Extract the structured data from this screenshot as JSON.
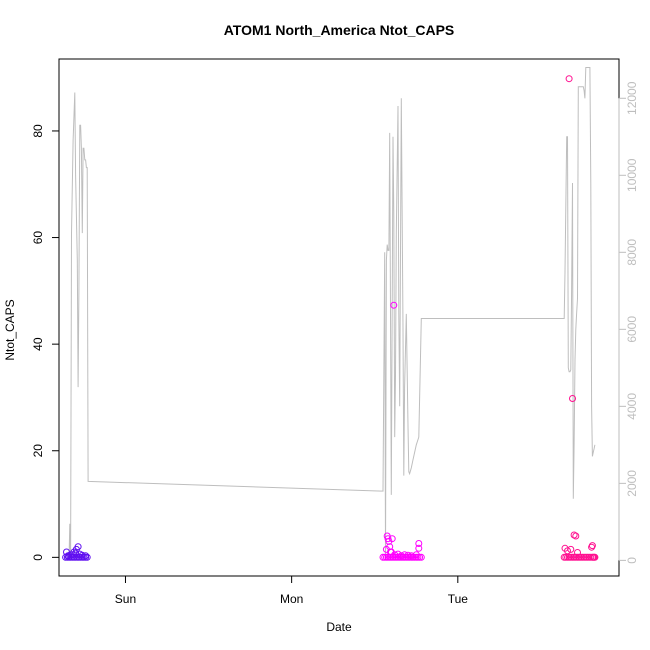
{
  "chart_data": {
    "type": "scatter",
    "title": "ATOM1 North_America Ntot_CAPS",
    "xlabel": "Date",
    "ylabel": "Ntot_CAPS",
    "x_unit": "day",
    "xlim": [
      -0.4,
      2.97
    ],
    "x_ticks": [
      {
        "value": 0,
        "label": "Sun"
      },
      {
        "value": 1,
        "label": "Mon"
      },
      {
        "value": 2,
        "label": "Tue"
      }
    ],
    "ylim": [
      -3.5,
      93.5
    ],
    "y_ticks": [
      0,
      20,
      40,
      60,
      80
    ],
    "secondary_ylim": [
      -406,
      13020
    ],
    "secondary_y_ticks": [
      0,
      2000,
      4000,
      6000,
      8000,
      10000,
      12000
    ],
    "grid": false,
    "legend": "none",
    "colors": {
      "axis": "#000000",
      "line": "#bebebe",
      "secondary_axis": "#bebebe",
      "points_cluster_1": "#6010f0",
      "points_cluster_2": "#ff00ff",
      "points_cluster_3": "#ff1090"
    },
    "series": [
      {
        "axis": "secondary",
        "style": "line",
        "color": "#bebebe",
        "x": [
          -0.34,
          -0.335,
          -0.33,
          -0.325,
          -0.315,
          -0.305,
          -0.3,
          -0.29,
          -0.285,
          -0.28,
          -0.275,
          -0.27,
          -0.265,
          -0.26,
          -0.255,
          -0.25,
          -0.245,
          -0.24,
          -0.235,
          -0.23,
          -0.225,
          1.55,
          1.56,
          1.565,
          1.57,
          1.575,
          1.58,
          1.585,
          1.59,
          1.6,
          1.61,
          1.615,
          1.62,
          1.625,
          1.63,
          1.64,
          1.645,
          1.65,
          1.66,
          1.67,
          1.675,
          1.68,
          1.69,
          1.7,
          1.705,
          1.71,
          1.72,
          1.73,
          1.74,
          1.75,
          1.765,
          1.78,
          2.64,
          2.645,
          2.655,
          2.66,
          2.665,
          2.67,
          2.675,
          2.68,
          2.685,
          2.69,
          2.695,
          2.7,
          2.705,
          2.71,
          2.715,
          2.72,
          2.725,
          2.73,
          2.735,
          2.74,
          2.745,
          2.755,
          2.76,
          2.765,
          2.77,
          2.78,
          2.79,
          2.795,
          2.8,
          2.805,
          2.81,
          2.815,
          2.82,
          2.825
        ],
        "y": [
          0,
          950,
          0,
          8500,
          10900,
          12150,
          10000,
          7800,
          4500,
          7000,
          11300,
          11300,
          10700,
          8500,
          10700,
          10700,
          10400,
          10400,
          10200,
          10200,
          2050,
          1800,
          8000,
          0,
          7800,
          8200,
          8050,
          8050,
          11100,
          1700,
          11000,
          9000,
          3200,
          4800,
          8500,
          11800,
          6400,
          4000,
          12000,
          6000,
          2200,
          4500,
          6400,
          3500,
          2300,
          2250,
          2400,
          2600,
          2800,
          3000,
          3200,
          6280,
          6280,
          7500,
          11000,
          11000,
          5000,
          4900,
          4900,
          4950,
          7000,
          9800,
          1600,
          3000,
          5200,
          6000,
          6400,
          6800,
          12300,
          12300,
          12300,
          12300,
          12300,
          12300,
          12200,
          12000,
          12800,
          12800,
          12800,
          12800,
          9800,
          4000,
          2700,
          2800,
          2900,
          3000
        ]
      },
      {
        "axis": "primary",
        "style": "points",
        "color": "#6010f0",
        "x": [
          -0.36,
          -0.35,
          -0.34,
          -0.33,
          -0.32,
          -0.31,
          -0.3,
          -0.29,
          -0.28,
          -0.27,
          -0.26,
          -0.25,
          -0.24,
          -0.23,
          -0.355,
          -0.345,
          -0.32,
          -0.3,
          -0.285,
          -0.295,
          -0.275,
          -0.26,
          -0.24,
          -0.345,
          -0.33,
          -0.31
        ],
        "y": [
          0,
          0,
          0,
          0,
          0,
          0,
          0,
          0,
          0,
          0,
          0,
          0,
          0,
          0,
          1,
          0.3,
          0.5,
          0.8,
          2,
          1.5,
          0.6,
          0.4,
          0.3,
          0.2,
          0.5,
          1
        ]
      },
      {
        "axis": "primary",
        "style": "points",
        "color": "#ff00ff",
        "x": [
          1.55,
          1.56,
          1.57,
          1.58,
          1.59,
          1.6,
          1.61,
          1.62,
          1.63,
          1.64,
          1.65,
          1.66,
          1.67,
          1.68,
          1.69,
          1.7,
          1.71,
          1.72,
          1.73,
          1.74,
          1.75,
          1.76,
          1.77,
          1.78,
          1.575,
          1.58,
          1.585,
          1.59,
          1.6,
          1.615,
          1.605,
          1.62,
          1.64,
          1.66,
          1.68,
          1.7,
          1.72,
          1.75,
          1.765,
          1.765,
          1.57,
          1.595
        ],
        "y": [
          0,
          0,
          0,
          0,
          0,
          0,
          0,
          0,
          0,
          0,
          0,
          0,
          0,
          0,
          0,
          0,
          0,
          0,
          0,
          0,
          0,
          0,
          0,
          0,
          4,
          3.5,
          3,
          2,
          1,
          47.3,
          3.5,
          0.5,
          0.6,
          0.3,
          0.5,
          0.4,
          0.3,
          0.5,
          2.6,
          1.7,
          1.5,
          1
        ]
      },
      {
        "axis": "primary",
        "style": "points",
        "color": "#ff1090",
        "x": [
          2.64,
          2.65,
          2.66,
          2.67,
          2.68,
          2.69,
          2.7,
          2.71,
          2.72,
          2.73,
          2.74,
          2.75,
          2.76,
          2.77,
          2.78,
          2.79,
          2.8,
          2.81,
          2.815,
          2.82,
          2.825,
          2.67,
          2.69,
          2.7,
          2.71,
          2.645,
          2.66,
          2.68,
          2.72,
          2.805,
          2.81
        ],
        "y": [
          0,
          0,
          0,
          0,
          0,
          0,
          0,
          0,
          0,
          0,
          0,
          0,
          0,
          0,
          0,
          0,
          0,
          0,
          0,
          0,
          0,
          89.8,
          29.8,
          4.2,
          4,
          1.7,
          1.2,
          1.5,
          0.9,
          1.9,
          2.2
        ]
      }
    ]
  }
}
